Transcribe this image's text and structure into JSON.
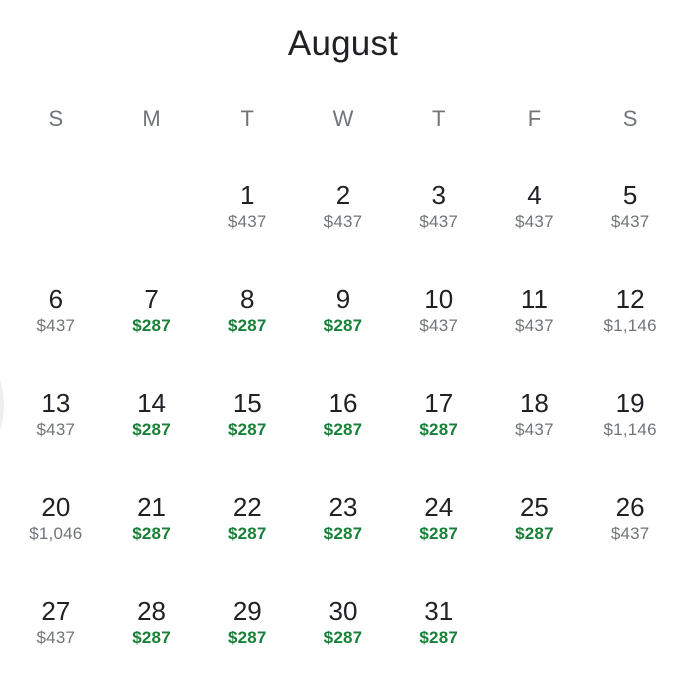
{
  "title": "August",
  "weekday_headers": [
    "S",
    "M",
    "T",
    "W",
    "T",
    "F",
    "S"
  ],
  "colors": {
    "day_number": "#202124",
    "price_low_green": "#188038",
    "price_regular_gray": "#70757a",
    "weekday_header": "#70757a",
    "background": "#ffffff"
  },
  "weeks": [
    [
      {
        "day": "",
        "price": "",
        "tone": ""
      },
      {
        "day": "",
        "price": "",
        "tone": ""
      },
      {
        "day": "1",
        "price": "$437",
        "tone": "gray"
      },
      {
        "day": "2",
        "price": "$437",
        "tone": "gray"
      },
      {
        "day": "3",
        "price": "$437",
        "tone": "gray"
      },
      {
        "day": "4",
        "price": "$437",
        "tone": "gray"
      },
      {
        "day": "5",
        "price": "$437",
        "tone": "gray"
      }
    ],
    [
      {
        "day": "6",
        "price": "$437",
        "tone": "gray"
      },
      {
        "day": "7",
        "price": "$287",
        "tone": "green"
      },
      {
        "day": "8",
        "price": "$287",
        "tone": "green"
      },
      {
        "day": "9",
        "price": "$287",
        "tone": "green"
      },
      {
        "day": "10",
        "price": "$437",
        "tone": "gray"
      },
      {
        "day": "11",
        "price": "$437",
        "tone": "gray"
      },
      {
        "day": "12",
        "price": "$1,146",
        "tone": "gray"
      }
    ],
    [
      {
        "day": "13",
        "price": "$437",
        "tone": "gray"
      },
      {
        "day": "14",
        "price": "$287",
        "tone": "green"
      },
      {
        "day": "15",
        "price": "$287",
        "tone": "green"
      },
      {
        "day": "16",
        "price": "$287",
        "tone": "green"
      },
      {
        "day": "17",
        "price": "$287",
        "tone": "green"
      },
      {
        "day": "18",
        "price": "$437",
        "tone": "gray"
      },
      {
        "day": "19",
        "price": "$1,146",
        "tone": "gray"
      }
    ],
    [
      {
        "day": "20",
        "price": "$1,046",
        "tone": "gray"
      },
      {
        "day": "21",
        "price": "$287",
        "tone": "green"
      },
      {
        "day": "22",
        "price": "$287",
        "tone": "green"
      },
      {
        "day": "23",
        "price": "$287",
        "tone": "green"
      },
      {
        "day": "24",
        "price": "$287",
        "tone": "green"
      },
      {
        "day": "25",
        "price": "$287",
        "tone": "green"
      },
      {
        "day": "26",
        "price": "$437",
        "tone": "gray"
      }
    ],
    [
      {
        "day": "27",
        "price": "$437",
        "tone": "gray"
      },
      {
        "day": "28",
        "price": "$287",
        "tone": "green"
      },
      {
        "day": "29",
        "price": "$287",
        "tone": "green"
      },
      {
        "day": "30",
        "price": "$287",
        "tone": "green"
      },
      {
        "day": "31",
        "price": "$287",
        "tone": "green"
      },
      {
        "day": "",
        "price": "",
        "tone": ""
      },
      {
        "day": "",
        "price": "",
        "tone": ""
      }
    ]
  ]
}
